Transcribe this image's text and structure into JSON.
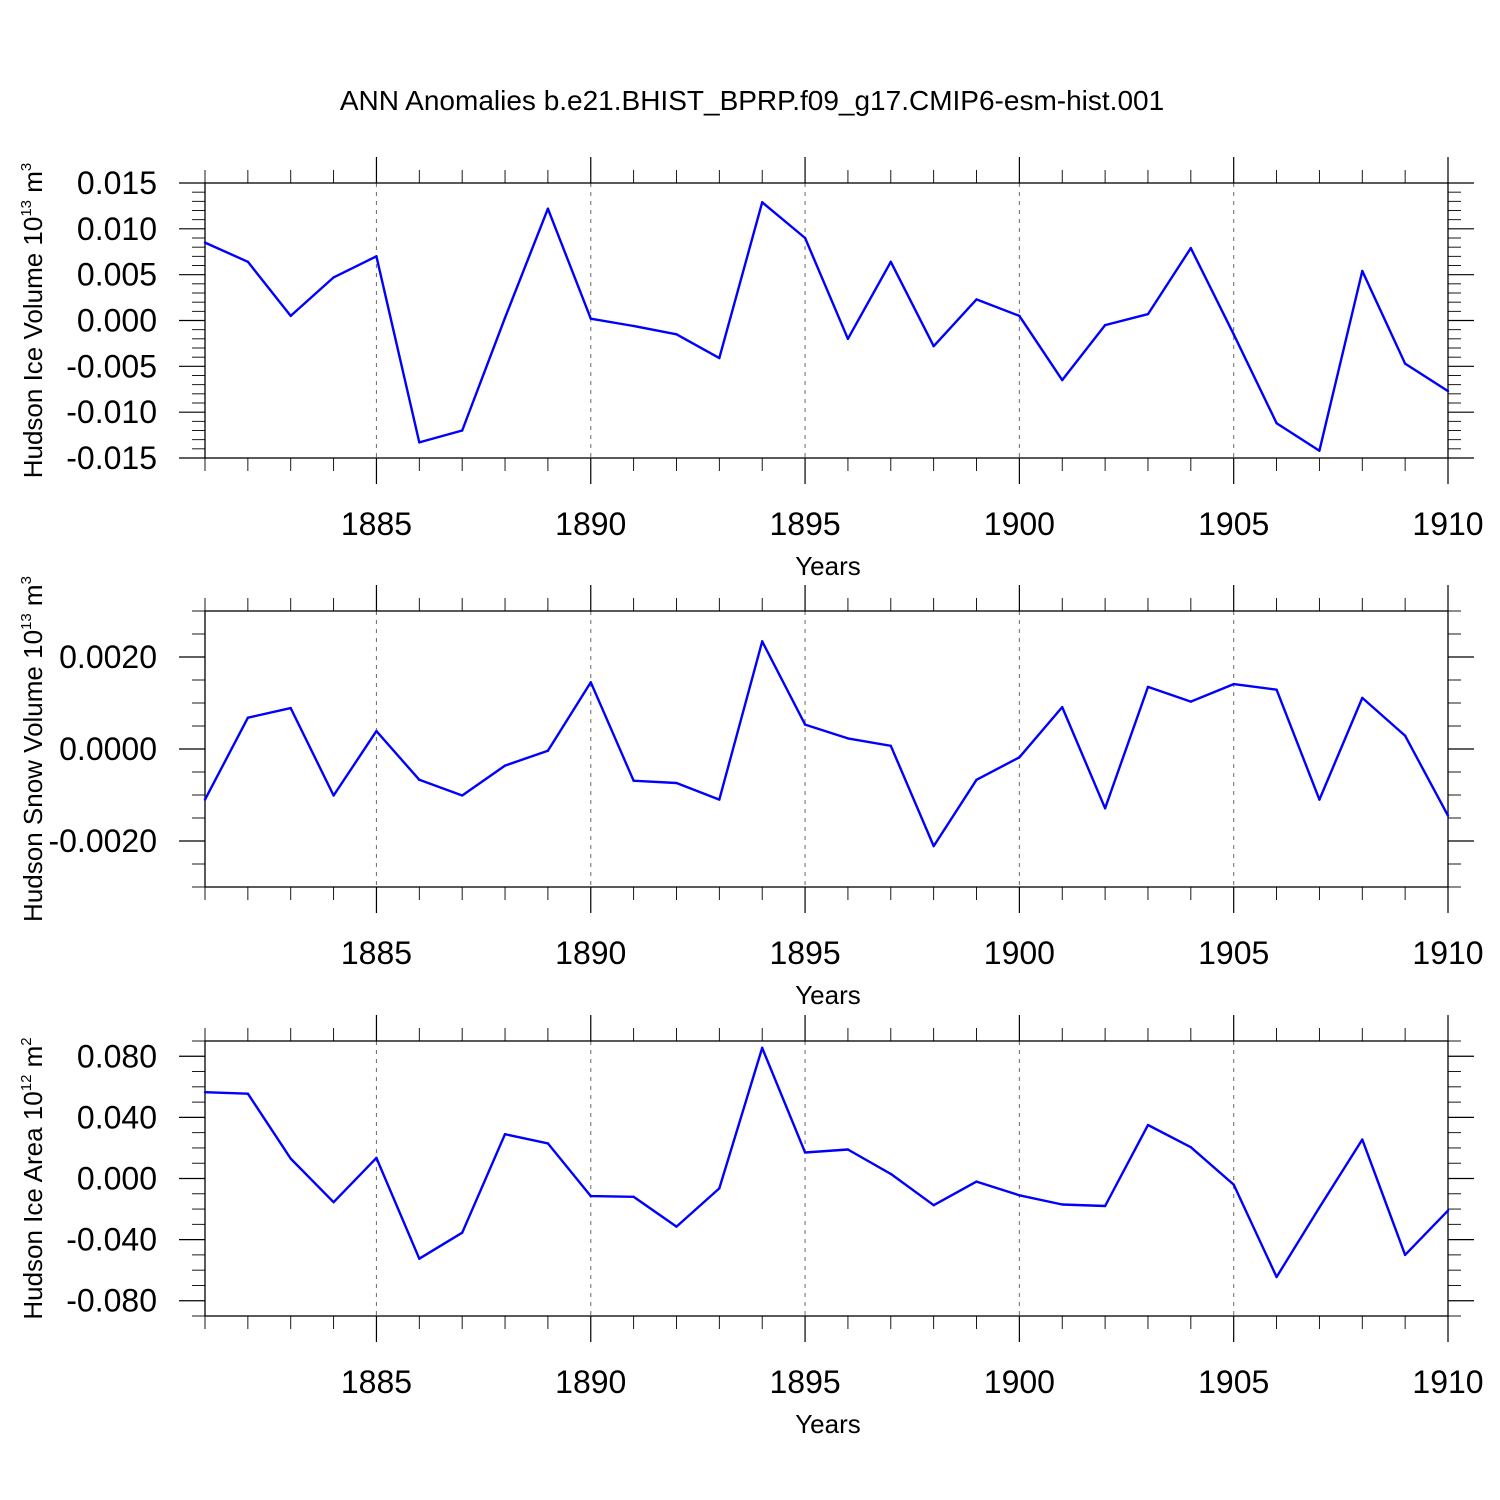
{
  "title": "ANN Anomalies b.e21.BHIST_BPRP.f09_g17.CMIP6-esm-hist.001",
  "colors": {
    "series": "#0000ff",
    "grid": "#777777"
  },
  "chart_data": [
    {
      "type": "line",
      "ylabel": {
        "text": "Hudson Ice Volume 10",
        "exp": "13",
        "unit": " m",
        "unit_exp": "3"
      },
      "xlabel": "Years",
      "xlim": [
        1881,
        1910
      ],
      "ylim": [
        -0.015,
        0.015
      ],
      "yticks": [
        0.015,
        0.01,
        0.005,
        0.0,
        -0.005,
        -0.01,
        -0.015
      ],
      "ytick_labels": [
        "0.015",
        "0.010",
        "0.005",
        "0.000",
        "-0.005",
        "-0.010",
        "-0.015"
      ],
      "yminor_step": 0.001,
      "xticks": [
        1885,
        1890,
        1895,
        1900,
        1905,
        1910
      ],
      "xtick_labels": [
        "1885",
        "1890",
        "1895",
        "1900",
        "1905",
        "1910"
      ],
      "grid_x": true,
      "x": [
        1881,
        1882,
        1883,
        1884,
        1885,
        1886,
        1887,
        1888,
        1889,
        1890,
        1891,
        1892,
        1893,
        1894,
        1895,
        1896,
        1897,
        1898,
        1899,
        1900,
        1901,
        1902,
        1903,
        1904,
        1905,
        1906,
        1907,
        1908,
        1909,
        1910
      ],
      "series": [
        {
          "values": [
            0.0085,
            0.0064,
            0.0005,
            0.0047,
            0.007,
            -0.0133,
            -0.012,
            0.0003,
            0.0122,
            0.0002,
            -0.0006,
            -0.0015,
            -0.0041,
            0.0129,
            0.009,
            -0.002,
            0.0064,
            -0.0028,
            0.0023,
            0.0005,
            -0.0065,
            -0.0005,
            0.0007,
            0.0079,
            -0.0015,
            -0.0112,
            -0.0142,
            0.0054,
            -0.0047,
            -0.0077
          ]
        }
      ]
    },
    {
      "type": "line",
      "ylabel": {
        "text": "Hudson Snow Volume 10",
        "exp": "13",
        "unit": " m",
        "unit_exp": "3"
      },
      "xlabel": "Years",
      "xlim": [
        1881,
        1910
      ],
      "ylim": [
        -0.003,
        0.003
      ],
      "yticks": [
        0.002,
        0.0,
        -0.002
      ],
      "ytick_labels": [
        "0.0020",
        "0.0000",
        "-0.0020"
      ],
      "yminor_step": 0.0005,
      "xticks": [
        1885,
        1890,
        1895,
        1900,
        1905,
        1910
      ],
      "xtick_labels": [
        "1885",
        "1890",
        "1895",
        "1900",
        "1905",
        "1910"
      ],
      "grid_x": true,
      "x": [
        1881,
        1882,
        1883,
        1884,
        1885,
        1886,
        1887,
        1888,
        1889,
        1890,
        1891,
        1892,
        1893,
        1894,
        1895,
        1896,
        1897,
        1898,
        1899,
        1900,
        1901,
        1902,
        1903,
        1904,
        1905,
        1906,
        1907,
        1908,
        1909,
        1910
      ],
      "series": [
        {
          "values": [
            -0.0011,
            0.00068,
            0.00089,
            -0.00101,
            0.00039,
            -0.00067,
            -0.00101,
            -0.00036,
            -4e-05,
            0.00145,
            -0.00069,
            -0.00074,
            -0.0011,
            0.00234,
            0.00053,
            0.00023,
            7e-05,
            -0.00211,
            -0.00067,
            -0.00018,
            0.00091,
            -0.00129,
            0.00135,
            0.00103,
            0.00141,
            0.00129,
            -0.0011,
            0.00111,
            0.00029,
            -0.00145
          ]
        }
      ]
    },
    {
      "type": "line",
      "ylabel": {
        "text": "Hudson Ice Area 10",
        "exp": "12",
        "unit": " m",
        "unit_exp": "2"
      },
      "xlabel": "Years",
      "xlim": [
        1881,
        1910
      ],
      "ylim": [
        -0.09,
        0.09
      ],
      "yticks": [
        0.08,
        0.04,
        0.0,
        -0.04,
        -0.08
      ],
      "ytick_labels": [
        "0.080",
        "0.040",
        "0.000",
        "-0.040",
        "-0.080"
      ],
      "yminor_step": 0.01,
      "xticks": [
        1885,
        1890,
        1895,
        1900,
        1905,
        1910
      ],
      "xtick_labels": [
        "1885",
        "1890",
        "1895",
        "1900",
        "1905",
        "1910"
      ],
      "grid_x": true,
      "x": [
        1881,
        1882,
        1883,
        1884,
        1885,
        1886,
        1887,
        1888,
        1889,
        1890,
        1891,
        1892,
        1893,
        1894,
        1895,
        1896,
        1897,
        1898,
        1899,
        1900,
        1901,
        1902,
        1903,
        1904,
        1905,
        1906,
        1907,
        1908,
        1909,
        1910
      ],
      "series": [
        {
          "values": [
            0.0565,
            0.0555,
            0.013,
            -0.0155,
            0.0135,
            -0.0525,
            -0.0355,
            0.029,
            0.023,
            -0.0115,
            -0.012,
            -0.0315,
            -0.0065,
            0.0855,
            0.017,
            0.019,
            0.003,
            -0.0175,
            -0.002,
            -0.011,
            -0.017,
            -0.018,
            0.035,
            0.0205,
            -0.004,
            -0.0645,
            -0.019,
            0.0255,
            -0.05,
            -0.021
          ]
        }
      ]
    }
  ]
}
